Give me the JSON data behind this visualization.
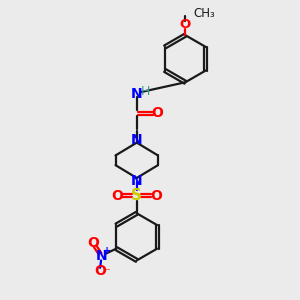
{
  "bg_color": "#ebebeb",
  "bond_color": "#1a1a1a",
  "N_color": "#0000ff",
  "O_color": "#ff0000",
  "S_color": "#cccc00",
  "H_color": "#3d9999",
  "line_width": 1.6,
  "figsize": [
    3.0,
    3.0
  ],
  "dpi": 100,
  "xlim": [
    0,
    10
  ],
  "ylim": [
    0,
    10
  ]
}
